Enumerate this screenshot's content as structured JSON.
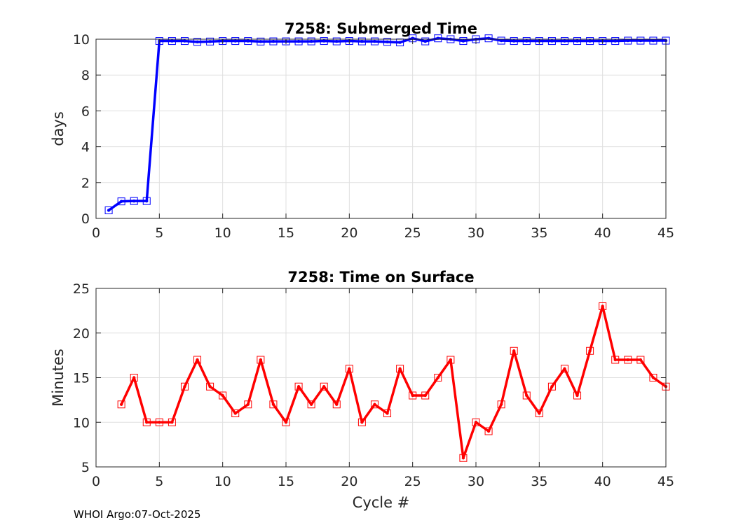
{
  "chart_data": [
    {
      "type": "line",
      "title": "7258: Submerged Time",
      "xlabel": "",
      "ylabel": "days",
      "xlim": [
        0,
        45
      ],
      "ylim": [
        0,
        10
      ],
      "xticks": [
        0,
        5,
        10,
        15,
        20,
        25,
        30,
        35,
        40,
        45
      ],
      "yticks": [
        0,
        2,
        4,
        6,
        8,
        10
      ],
      "grid": true,
      "color": "#0000ff",
      "marker": "square",
      "series": [
        {
          "name": "Submerged Time",
          "x": [
            1,
            2,
            3,
            4,
            5,
            6,
            7,
            8,
            9,
            10,
            11,
            12,
            13,
            14,
            15,
            16,
            17,
            18,
            19,
            20,
            21,
            22,
            23,
            24,
            25,
            26,
            27,
            28,
            29,
            30,
            31,
            32,
            33,
            34,
            35,
            36,
            37,
            38,
            39,
            40,
            41,
            42,
            43,
            44,
            45
          ],
          "values": [
            0.45,
            0.95,
            0.97,
            0.97,
            9.9,
            9.9,
            9.9,
            9.85,
            9.87,
            9.9,
            9.9,
            9.9,
            9.87,
            9.88,
            9.88,
            9.88,
            9.88,
            9.9,
            9.88,
            9.9,
            9.88,
            9.88,
            9.85,
            9.82,
            10.05,
            9.88,
            10.05,
            10.0,
            9.9,
            10.0,
            10.05,
            9.92,
            9.9,
            9.9,
            9.9,
            9.9,
            9.9,
            9.9,
            9.9,
            9.9,
            9.9,
            9.92,
            9.92,
            9.92,
            9.92
          ]
        }
      ]
    },
    {
      "type": "line",
      "title": "7258: Time on Surface",
      "xlabel": "Cycle #",
      "ylabel": "Minutes",
      "xlim": [
        0,
        45
      ],
      "ylim": [
        5,
        25
      ],
      "xticks": [
        0,
        5,
        10,
        15,
        20,
        25,
        30,
        35,
        40,
        45
      ],
      "yticks": [
        5,
        10,
        15,
        20,
        25
      ],
      "grid": true,
      "color": "#ff0000",
      "marker": "square",
      "series": [
        {
          "name": "Time on Surface",
          "x": [
            2,
            3,
            4,
            5,
            6,
            7,
            8,
            9,
            10,
            11,
            12,
            13,
            14,
            15,
            16,
            17,
            18,
            19,
            20,
            21,
            22,
            23,
            24,
            25,
            26,
            27,
            28,
            29,
            30,
            31,
            32,
            33,
            34,
            35,
            36,
            37,
            38,
            39,
            40,
            41,
            42,
            43,
            44,
            45
          ],
          "values": [
            12,
            15,
            10,
            10,
            10,
            14,
            17,
            14,
            13,
            11,
            12,
            17,
            12,
            10,
            14,
            12,
            14,
            12,
            16,
            10,
            12,
            11,
            16,
            13,
            13,
            15,
            17,
            6,
            10,
            9,
            12,
            18,
            13,
            11,
            14,
            16,
            13,
            18,
            23,
            17,
            17,
            17,
            15,
            14
          ]
        }
      ]
    }
  ],
  "footer": "WHOI Argo:07-Oct-2025"
}
